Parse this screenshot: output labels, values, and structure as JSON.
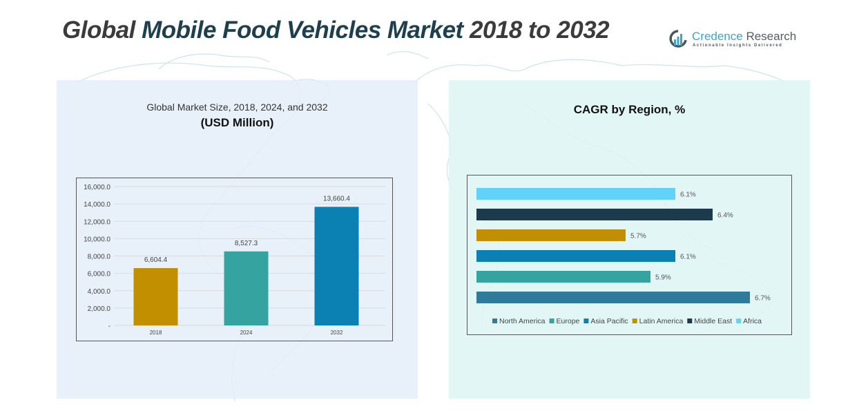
{
  "header": {
    "title_part1": "Global ",
    "title_part2": "Mobile Food Vehicles Market",
    "title_part3": " 2018 to 2032"
  },
  "logo": {
    "name_part1": "Credence",
    "name_part2": " Research",
    "tagline": "Actionable Insights Delivered",
    "icon": "bar-chart-circle-icon"
  },
  "left_panel": {
    "subtitle": "Global Market Size, 2018, 2024, and 2032",
    "unit": "(USD Million)"
  },
  "right_panel": {
    "title": "CAGR by Region, %"
  },
  "chart_data": [
    {
      "type": "bar",
      "title": "Global Market Size, 2018, 2024, and 2032 (USD Million)",
      "categories": [
        "2018",
        "2024",
        "2032"
      ],
      "values": [
        6604.4,
        8527.3,
        13660.4
      ],
      "value_labels": [
        "6,604.4",
        "8,527.3",
        "13,660.4"
      ],
      "colors": [
        "#c18f00",
        "#35a4a0",
        "#0b80b3"
      ],
      "ylim": [
        0,
        16000
      ],
      "yticks": [
        0,
        2000,
        4000,
        6000,
        8000,
        10000,
        12000,
        14000,
        16000
      ],
      "ytick_labels": [
        "-",
        "2,000.0",
        "4,000.0",
        "6,000.0",
        "8,000.0",
        "10,000.0",
        "12,000.0",
        "14,000.0",
        "16,000.0"
      ],
      "xlabel": "",
      "ylabel": "",
      "grid": true
    },
    {
      "type": "bar",
      "orientation": "horizontal",
      "title": "CAGR by Region, %",
      "categories": [
        "North America",
        "Europe",
        "Asia Pacific",
        "Latin America",
        "Middle East",
        "Africa"
      ],
      "values": [
        6.7,
        5.9,
        6.1,
        5.7,
        6.4,
        6.1
      ],
      "value_labels": [
        "6.7%",
        "5.9%",
        "6.1%",
        "5.7%",
        "6.4%",
        "6.1%"
      ],
      "colors": [
        "#2e7b9c",
        "#35a4a0",
        "#0b80b3",
        "#c18f00",
        "#1b3a4b",
        "#63d2f9"
      ],
      "xlim": [
        4.5,
        6.8
      ],
      "legend": "bottom",
      "grid": false
    }
  ]
}
